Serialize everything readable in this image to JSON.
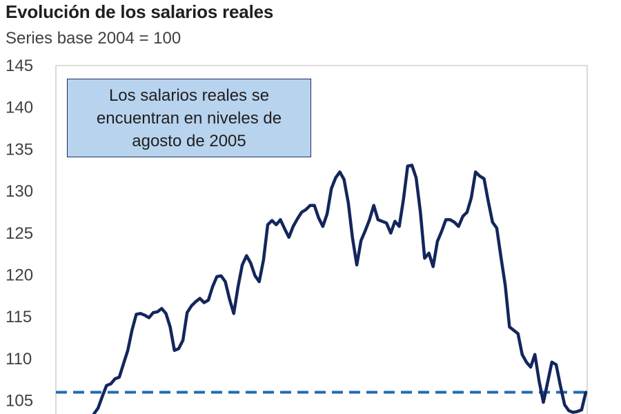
{
  "chart_data": {
    "type": "line",
    "title": "Evolución de los salarios reales",
    "subtitle": "Series base 2004 = 100",
    "yticks": [
      "145",
      "140",
      "135",
      "130",
      "125",
      "120",
      "115",
      "110",
      "105"
    ],
    "ylim": [
      103.5,
      145
    ],
    "annotation": "Los salarios reales se encuentran en niveles de agosto de 2005",
    "reference_line": {
      "value": 106,
      "style": "dashed",
      "color": "#1f6cb0"
    },
    "series": [
      {
        "color": "#13265c",
        "values": [
          103.4,
          104.1,
          105.5,
          106.8,
          107.0,
          107.6,
          107.8,
          109.4,
          111.0,
          113.4,
          115.3,
          115.4,
          115.2,
          114.9,
          115.5,
          115.6,
          116.0,
          115.4,
          113.8,
          111.0,
          111.2,
          112.2,
          115.5,
          116.3,
          116.8,
          117.2,
          116.7,
          117.0,
          118.6,
          119.8,
          119.9,
          119.2,
          117.1,
          115.4,
          118.6,
          121.2,
          122.3,
          121.4,
          119.9,
          119.2,
          121.8,
          126.0,
          126.5,
          126.0,
          126.6,
          125.5,
          124.5,
          125.8,
          126.7,
          127.5,
          127.8,
          128.3,
          128.3,
          126.8,
          125.8,
          127.3,
          130.3,
          131.6,
          132.3,
          131.4,
          128.6,
          124.4,
          121.2,
          124.1,
          125.3,
          126.6,
          128.3,
          126.6,
          126.4,
          126.2,
          125.0,
          126.4,
          125.8,
          129.0,
          133.0,
          133.1,
          131.6,
          127.5,
          122.0,
          122.6,
          121.0,
          124.0,
          125.2,
          126.6,
          126.6,
          126.3,
          125.8,
          127.0,
          127.5,
          129.2,
          132.3,
          131.8,
          131.5,
          128.8,
          126.3,
          125.6,
          122.1,
          118.8,
          113.8,
          113.4,
          113.0,
          110.5,
          109.6,
          109.0,
          110.5,
          107.3,
          104.8,
          107.2,
          109.6,
          109.3,
          106.8,
          104.5,
          103.8,
          103.6,
          103.7,
          103.9,
          106.0
        ]
      }
    ]
  }
}
